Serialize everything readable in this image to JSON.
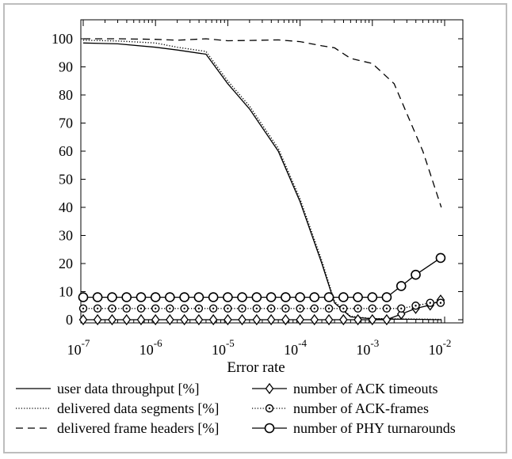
{
  "chart_data": {
    "type": "line",
    "title": "",
    "xlabel": "Error rate",
    "ylabel": "",
    "x_scale": "log",
    "xlim": [
      1e-07,
      0.01
    ],
    "ylim": [
      0,
      100
    ],
    "x_ticks": [
      {
        "base": "10",
        "exp": "-7",
        "value": 1e-07
      },
      {
        "base": "10",
        "exp": "-6",
        "value": 1e-06
      },
      {
        "base": "10",
        "exp": "-5",
        "value": 1e-05
      },
      {
        "base": "10",
        "exp": "-4",
        "value": 0.0001
      },
      {
        "base": "10",
        "exp": "-3",
        "value": 0.001
      },
      {
        "base": "10",
        "exp": "-2",
        "value": 0.01
      }
    ],
    "y_ticks": [
      "0",
      "10",
      "20",
      "30",
      "40",
      "50",
      "60",
      "70",
      "80",
      "90",
      "100"
    ],
    "grid": false,
    "legend_position": "bottom",
    "series": [
      {
        "name": "user data throughput [%]",
        "style": "solid",
        "marker": "none",
        "color": "#000000",
        "points": [
          [
            1e-07,
            98.5
          ],
          [
            3e-07,
            98.2
          ],
          [
            1e-06,
            97.0
          ],
          [
            2e-06,
            96.0
          ],
          [
            5e-06,
            94.5
          ],
          [
            1e-05,
            84.0
          ],
          [
            2e-05,
            75.0
          ],
          [
            5e-05,
            60.0
          ],
          [
            0.0001,
            42.0
          ],
          [
            0.0002,
            20.0
          ],
          [
            0.0003,
            6.0
          ],
          [
            0.0005,
            1.0
          ],
          [
            0.001,
            0.3
          ],
          [
            0.002,
            0.2
          ],
          [
            0.005,
            0.1
          ],
          [
            0.009,
            0.0
          ]
        ]
      },
      {
        "name": "delivered data segments [%]",
        "style": "dotted",
        "marker": "none",
        "color": "#000000",
        "points": [
          [
            1e-07,
            99.5
          ],
          [
            3e-07,
            99.2
          ],
          [
            1e-06,
            98.5
          ],
          [
            2e-06,
            97.0
          ],
          [
            5e-06,
            95.5
          ],
          [
            1e-05,
            85.0
          ],
          [
            2e-05,
            76.0
          ],
          [
            5e-05,
            61.0
          ],
          [
            0.0001,
            43.0
          ],
          [
            0.0002,
            21.0
          ],
          [
            0.0003,
            6.5
          ],
          [
            0.0005,
            1.2
          ],
          [
            0.001,
            0.4
          ],
          [
            0.002,
            0.3
          ],
          [
            0.005,
            0.2
          ],
          [
            0.009,
            0.1
          ]
        ]
      },
      {
        "name": "delivered frame headers [%]",
        "style": "dashed",
        "marker": "none",
        "color": "#000000",
        "points": [
          [
            1e-07,
            100.0
          ],
          [
            3e-07,
            100.0
          ],
          [
            1e-06,
            99.8
          ],
          [
            2e-06,
            99.5
          ],
          [
            5e-06,
            100.0
          ],
          [
            1e-05,
            99.3
          ],
          [
            2e-05,
            99.4
          ],
          [
            5e-05,
            99.6
          ],
          [
            0.0001,
            99.0
          ],
          [
            0.0002,
            97.5
          ],
          [
            0.0003,
            96.8
          ],
          [
            0.0005,
            93.0
          ],
          [
            0.001,
            91.2
          ],
          [
            0.002,
            84.0
          ],
          [
            0.005,
            60.0
          ],
          [
            0.009,
            40.0
          ]
        ]
      },
      {
        "name": "number of ACK timeouts",
        "style": "solid",
        "marker": "diamond",
        "color": "#000000",
        "points": [
          [
            1e-07,
            0
          ],
          [
            1.58e-07,
            0
          ],
          [
            2.51e-07,
            0
          ],
          [
            3.98e-07,
            0
          ],
          [
            6.31e-07,
            0
          ],
          [
            1e-06,
            0
          ],
          [
            1.58e-06,
            0
          ],
          [
            2.51e-06,
            0
          ],
          [
            3.98e-06,
            0
          ],
          [
            6.31e-06,
            0
          ],
          [
            1e-05,
            0
          ],
          [
            1.58e-05,
            0
          ],
          [
            2.51e-05,
            0
          ],
          [
            3.98e-05,
            0
          ],
          [
            6.31e-05,
            0
          ],
          [
            0.0001,
            0
          ],
          [
            0.000158,
            0
          ],
          [
            0.000251,
            0
          ],
          [
            0.000398,
            0
          ],
          [
            0.000631,
            0
          ],
          [
            0.001,
            0
          ],
          [
            0.00158,
            0
          ],
          [
            0.00251,
            2.0
          ],
          [
            0.00398,
            4.0
          ],
          [
            0.00631,
            5.2
          ],
          [
            0.0088,
            7.0
          ]
        ]
      },
      {
        "name": "number of ACK-frames",
        "style": "dotted",
        "marker": "circle-dot",
        "color": "#000000",
        "points": [
          [
            1e-07,
            4
          ],
          [
            1.58e-07,
            4
          ],
          [
            2.51e-07,
            4
          ],
          [
            3.98e-07,
            4
          ],
          [
            6.31e-07,
            4
          ],
          [
            1e-06,
            4
          ],
          [
            1.58e-06,
            4
          ],
          [
            2.51e-06,
            4
          ],
          [
            3.98e-06,
            4
          ],
          [
            6.31e-06,
            4
          ],
          [
            1e-05,
            4
          ],
          [
            1.58e-05,
            4
          ],
          [
            2.51e-05,
            4
          ],
          [
            3.98e-05,
            4
          ],
          [
            6.31e-05,
            4
          ],
          [
            0.0001,
            4
          ],
          [
            0.000158,
            4
          ],
          [
            0.000251,
            4
          ],
          [
            0.000398,
            4
          ],
          [
            0.000631,
            4
          ],
          [
            0.001,
            4
          ],
          [
            0.00158,
            4
          ],
          [
            0.00251,
            4
          ],
          [
            0.00398,
            5
          ],
          [
            0.00631,
            6
          ],
          [
            0.0088,
            6
          ]
        ]
      },
      {
        "name": "number of PHY turnarounds",
        "style": "solid",
        "marker": "circle",
        "color": "#000000",
        "points": [
          [
            1e-07,
            8
          ],
          [
            1.58e-07,
            8
          ],
          [
            2.51e-07,
            8
          ],
          [
            3.98e-07,
            8
          ],
          [
            6.31e-07,
            8
          ],
          [
            1e-06,
            8
          ],
          [
            1.58e-06,
            8
          ],
          [
            2.51e-06,
            8
          ],
          [
            3.98e-06,
            8
          ],
          [
            6.31e-06,
            8
          ],
          [
            1e-05,
            8
          ],
          [
            1.58e-05,
            8
          ],
          [
            2.51e-05,
            8
          ],
          [
            3.98e-05,
            8
          ],
          [
            6.31e-05,
            8
          ],
          [
            0.0001,
            8
          ],
          [
            0.000158,
            8
          ],
          [
            0.000251,
            8
          ],
          [
            0.000398,
            8
          ],
          [
            0.000631,
            8
          ],
          [
            0.001,
            8
          ],
          [
            0.00158,
            8
          ],
          [
            0.00251,
            12
          ],
          [
            0.00398,
            16
          ],
          [
            0.0088,
            22
          ]
        ]
      }
    ]
  }
}
